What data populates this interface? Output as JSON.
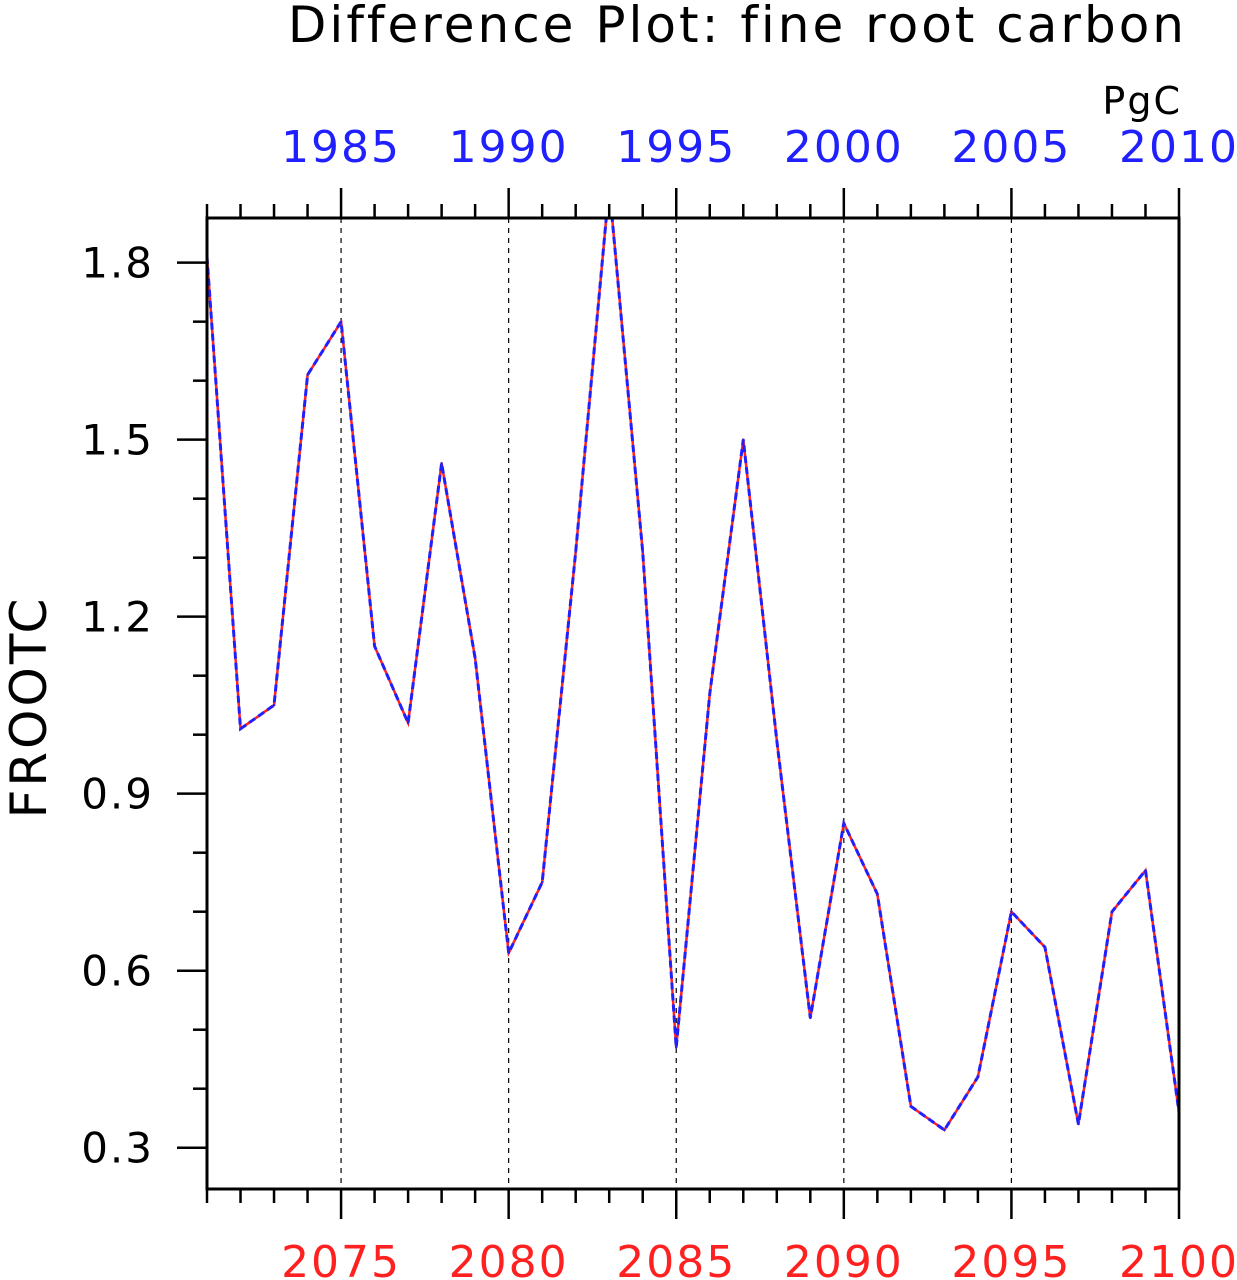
{
  "chart_data": {
    "type": "line",
    "title": "Difference Plot: fine root carbon",
    "units": "PgC",
    "ylabel": "FROOTC",
    "ylim": [
      0.23,
      1.8757
    ],
    "yticks": [
      0.3,
      0.6,
      0.9,
      1.2,
      1.5,
      1.8
    ],
    "ytick_labels": [
      "0.3",
      "0.6",
      "0.9",
      "1.2",
      "1.5",
      "1.8"
    ],
    "x_bottom": {
      "range": [
        2071,
        2100
      ],
      "ticks": [
        2075,
        2080,
        2085,
        2090,
        2095,
        2100
      ],
      "labels": [
        "2075",
        "2080",
        "2085",
        "2090",
        "2095",
        "2100"
      ],
      "color": "#ff2020"
    },
    "x_top": {
      "range": [
        1981,
        2010
      ],
      "ticks": [
        1985,
        1990,
        1995,
        2000,
        2005,
        2010
      ],
      "labels": [
        "1985",
        "1990",
        "1995",
        "2000",
        "2005",
        "2010"
      ],
      "color": "#2020ff"
    },
    "grid": "vertical-dashed",
    "x": [
      2071,
      2072,
      2073,
      2074,
      2075,
      2076,
      2077,
      2078,
      2079,
      2080,
      2081,
      2082,
      2083,
      2084,
      2085,
      2086,
      2087,
      2088,
      2089,
      2090,
      2091,
      2092,
      2093,
      2094,
      2095,
      2096,
      2097,
      2098,
      2099,
      2100
    ],
    "series": [
      {
        "color": "#ff2020",
        "style": "solid",
        "values": [
          1.81,
          1.01,
          1.05,
          1.61,
          1.7,
          1.15,
          1.02,
          1.46,
          1.13,
          0.63,
          0.75,
          1.31,
          1.93,
          1.31,
          0.47,
          1.07,
          1.5,
          0.99,
          0.52,
          0.85,
          0.73,
          0.37,
          0.33,
          0.42,
          0.7,
          0.64,
          0.34,
          0.7,
          0.77,
          0.36
        ]
      },
      {
        "color": "#2020ff",
        "style": "dashed",
        "values": [
          1.81,
          1.01,
          1.05,
          1.61,
          1.7,
          1.15,
          1.02,
          1.46,
          1.13,
          0.63,
          0.75,
          1.31,
          1.93,
          1.31,
          0.47,
          1.07,
          1.5,
          0.99,
          0.52,
          0.85,
          0.73,
          0.37,
          0.33,
          0.42,
          0.7,
          0.64,
          0.34,
          0.7,
          0.77,
          0.36
        ]
      }
    ]
  }
}
